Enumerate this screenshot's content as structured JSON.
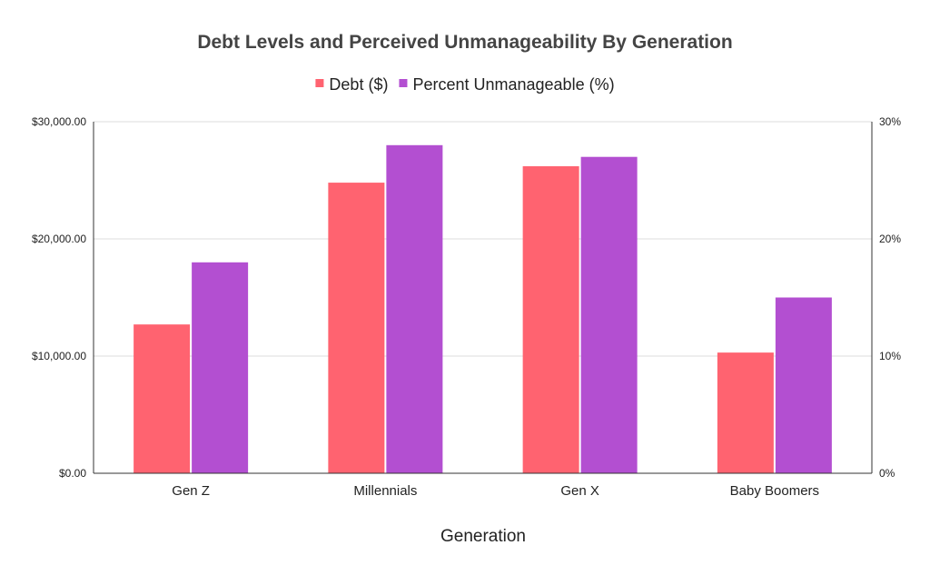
{
  "chart_data": {
    "type": "bar",
    "title": "Debt Levels and Perceived Unmanageability By Generation",
    "xlabel": "Generation",
    "categories": [
      "Gen Z",
      "Millennials",
      "Gen X",
      "Baby Boomers"
    ],
    "series": [
      {
        "name": "Debt ($)",
        "axis": "left",
        "color": "#ff6370",
        "values": [
          12700,
          24800,
          26200,
          10300
        ]
      },
      {
        "name": "Percent Unmanageable (%)",
        "axis": "right",
        "color": "#b34fd1",
        "values": [
          18,
          28,
          27,
          15
        ]
      }
    ],
    "y_left": {
      "ylim": [
        0,
        30000
      ],
      "ticks": [
        0,
        10000,
        20000,
        30000
      ],
      "tick_labels": [
        "$0.00",
        "$10,000.00",
        "$20,000.00",
        "$30,000.00"
      ]
    },
    "y_right": {
      "ylim": [
        0,
        30
      ],
      "ticks": [
        0,
        10,
        20,
        30
      ],
      "tick_labels": [
        "0%",
        "10%",
        "20%",
        "30%"
      ]
    },
    "grid": true,
    "legend_position": "top-center"
  }
}
